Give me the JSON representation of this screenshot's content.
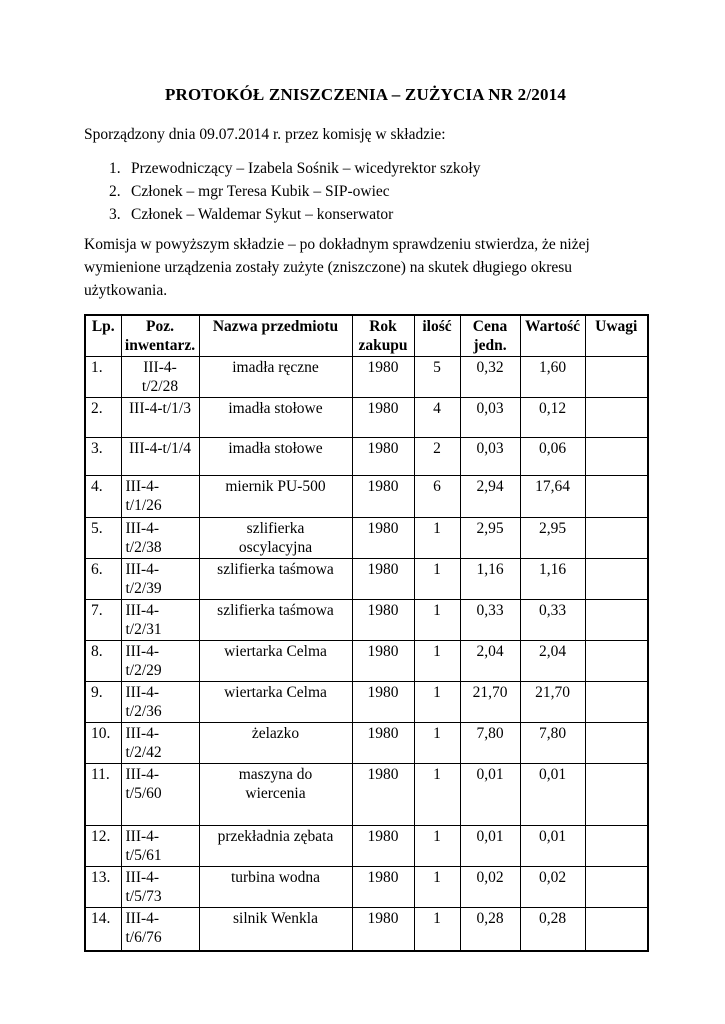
{
  "document": {
    "title": "PROTOKÓŁ ZNISZCZENIA – ZUŻYCIA NR 2/2014",
    "intro": "Sporządzony dnia 09.07.2014 r. przez komisję w składzie:",
    "committee": [
      {
        "number": "1.",
        "text": "Przewodniczący – Izabela Sośnik – wicedyrektor szkoły"
      },
      {
        "number": "2.",
        "text": "Członek – mgr Teresa Kubik – SIP-owiec"
      },
      {
        "number": "3.",
        "text": "Członek – Waldemar Sykut – konserwator"
      }
    ],
    "statement": "Komisja w powyższym składzie – po dokładnym sprawdzeniu stwierdza, że niżej wymienione urządzenia zostały zużyte (zniszczone) na skutek długiego okresu użytkowania."
  },
  "table": {
    "headers": [
      "Lp.",
      "Poz.\ninwentarz.",
      "Nazwa przedmiotu",
      "Rok\nzakupu",
      "ilość",
      "Cena\njedn.",
      "Wartość",
      "Uwagi"
    ],
    "rows": [
      [
        "1.",
        "III-4-\nt/2/28",
        "imadła ręczne",
        "1980",
        "5",
        "0,32",
        "1,60",
        ""
      ],
      [
        "2.",
        "III-4-t/1/3",
        "imadła stołowe",
        "1980",
        "4",
        "0,03",
        "0,12",
        ""
      ],
      [
        "3.",
        "III-4-t/1/4",
        "imadła stołowe",
        "1980",
        "2",
        "0,03",
        "0,06",
        ""
      ],
      [
        "4.",
        "III-4-\nt/1/26",
        "miernik PU-500",
        "1980",
        "6",
        "2,94",
        "17,64",
        ""
      ],
      [
        "5.",
        "III-4-\nt/2/38",
        "szlifierka\noscylacyjna",
        "1980",
        "1",
        "2,95",
        "2,95",
        ""
      ],
      [
        "6.",
        "III-4-\nt/2/39",
        "szlifierka taśmowa",
        "1980",
        "1",
        "1,16",
        "1,16",
        ""
      ],
      [
        "7.",
        "III-4-\nt/2/31",
        "szlifierka taśmowa",
        "1980",
        "1",
        "0,33",
        "0,33",
        ""
      ],
      [
        "8.",
        "III-4-\nt/2/29",
        "wiertarka Celma",
        "1980",
        "1",
        "2,04",
        "2,04",
        ""
      ],
      [
        "9.",
        "III-4-\nt/2/36",
        "wiertarka Celma",
        "1980",
        "1",
        "21,70",
        "21,70",
        ""
      ],
      [
        "10.",
        "III-4-\nt/2/42",
        "żelazko",
        "1980",
        "1",
        "7,80",
        "7,80",
        ""
      ],
      [
        "11.",
        "III-4-\nt/5/60",
        "maszyna do\nwiercenia",
        "1980",
        "1",
        "0,01",
        "0,01",
        ""
      ],
      [
        "12.",
        "III-4-\nt/5/61",
        "przekładnia zębata",
        "1980",
        "1",
        "0,01",
        "0,01",
        ""
      ],
      [
        "13.",
        "III-4-\nt/5/73",
        "turbina wodna",
        "1980",
        "1",
        "0,02",
        "0,02",
        ""
      ],
      [
        "14.",
        "III-4-\nt/6/76",
        "silnik Wenkla",
        "1980",
        "1",
        "0,28",
        "0,28",
        ""
      ]
    ]
  },
  "colors": {
    "page_background": "#ffffff",
    "text": "#000000",
    "table_border": "#000000"
  }
}
